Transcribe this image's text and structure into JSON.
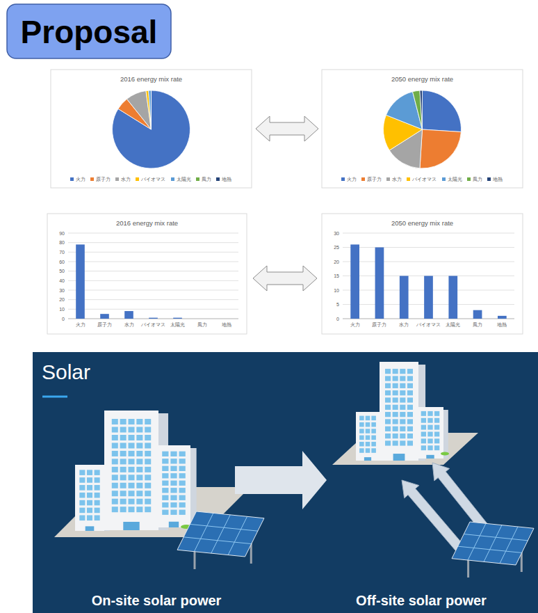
{
  "header": {
    "title": "Proposal"
  },
  "chart_data": [
    {
      "type": "pie",
      "title": "2016 energy mix rate",
      "categories": [
        "火力",
        "原子力",
        "水力",
        "バイオマス",
        "太陽光",
        "風力",
        "地熱"
      ],
      "values": [
        78,
        5,
        8,
        1,
        1,
        0,
        0
      ],
      "colors": [
        "#4472c4",
        "#ed7d31",
        "#a5a5a5",
        "#ffc000",
        "#5b9bd5",
        "#70ad47",
        "#264478"
      ],
      "legend": "bottom"
    },
    {
      "type": "pie",
      "title": "2050 energy mix rate",
      "categories": [
        "火力",
        "原子力",
        "水力",
        "バイオマス",
        "太陽光",
        "風力",
        "地熱"
      ],
      "values": [
        26,
        25,
        15,
        15,
        15,
        3,
        1
      ],
      "colors": [
        "#4472c4",
        "#ed7d31",
        "#a5a5a5",
        "#ffc000",
        "#5b9bd5",
        "#70ad47",
        "#264478"
      ],
      "legend": "bottom"
    },
    {
      "type": "bar",
      "title": "2016 energy mix rate",
      "categories": [
        "火力",
        "原子力",
        "水力",
        "バイオマス",
        "太陽光",
        "風力",
        "地熱"
      ],
      "values": [
        78,
        5,
        8,
        1,
        1,
        0,
        0
      ],
      "color": "#4472c4",
      "ylim": [
        0,
        90
      ],
      "yticks": [
        0,
        10,
        20,
        30,
        40,
        50,
        60,
        70,
        80,
        90
      ],
      "grid": true
    },
    {
      "type": "bar",
      "title": "2050 energy mix rate",
      "categories": [
        "火力",
        "原子力",
        "水力",
        "バイオマス",
        "太陽光",
        "風力",
        "地熱"
      ],
      "values": [
        26,
        25,
        15,
        15,
        15,
        3,
        1
      ],
      "color": "#4472c4",
      "ylim": [
        0,
        30
      ],
      "yticks": [
        0,
        5,
        10,
        15,
        20,
        25,
        30
      ],
      "grid": true
    }
  ],
  "diagram": {
    "title": "Solar",
    "labels": [
      "On-site solar power",
      "Off-site solar power"
    ]
  }
}
